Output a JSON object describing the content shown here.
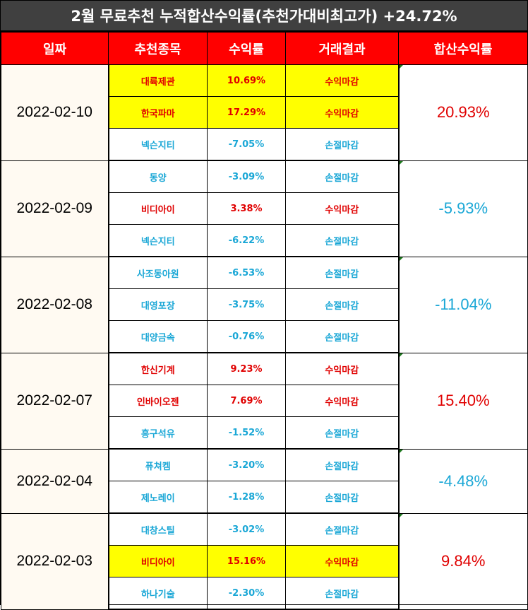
{
  "title": "2월 무료추천 누적합산수익률(추천가대비최고가) +24.72%",
  "headers": {
    "date": "일짜",
    "stock": "추천종목",
    "return": "수익률",
    "result": "거래결과",
    "total": "합산수익률"
  },
  "colors": {
    "title_bg": "#404040",
    "header_bg": "#ff0000",
    "positive": "#e00000",
    "negative": "#1aa7d6",
    "highlight": "#ffff00"
  },
  "groups": [
    {
      "date": "2022-02-10",
      "total": "20.93%",
      "rows": [
        {
          "stock": "대륙제관",
          "return": "10.69%",
          "result": "수익마감"
        },
        {
          "stock": "한국파마",
          "return": "17.29%",
          "result": "수익마감"
        },
        {
          "stock": "넥슨지티",
          "return": "-7.05%",
          "result": "손절마감"
        }
      ]
    },
    {
      "date": "2022-02-09",
      "total": "-5.93%",
      "rows": [
        {
          "stock": "동양",
          "return": "-3.09%",
          "result": "손절마감"
        },
        {
          "stock": "비디아이",
          "return": "3.38%",
          "result": "수익마감"
        },
        {
          "stock": "넥슨지티",
          "return": "-6.22%",
          "result": "손절마감"
        }
      ]
    },
    {
      "date": "2022-02-08",
      "total": "-11.04%",
      "rows": [
        {
          "stock": "사조동아원",
          "return": "-6.53%",
          "result": "손절마감"
        },
        {
          "stock": "대영포장",
          "return": "-3.75%",
          "result": "손절마감"
        },
        {
          "stock": "대양금속",
          "return": "-0.76%",
          "result": "손절마감"
        }
      ]
    },
    {
      "date": "2022-02-07",
      "total": "15.40%",
      "rows": [
        {
          "stock": "한신기계",
          "return": "9.23%",
          "result": "수익마감"
        },
        {
          "stock": "인바이오젠",
          "return": "7.69%",
          "result": "수익마감"
        },
        {
          "stock": "흥구석유",
          "return": "-1.52%",
          "result": "손절마감"
        }
      ]
    },
    {
      "date": "2022-02-04",
      "total": "-4.48%",
      "rows": [
        {
          "stock": "퓨쳐켐",
          "return": "-3.20%",
          "result": "손절마감"
        },
        {
          "stock": "제노레이",
          "return": "-1.28%",
          "result": "손절마감"
        }
      ]
    },
    {
      "date": "2022-02-03",
      "total": "9.84%",
      "rows": [
        {
          "stock": "대창스틸",
          "return": "-3.02%",
          "result": "손절마감"
        },
        {
          "stock": "비디아이",
          "return": "15.16%",
          "result": "수익마감"
        },
        {
          "stock": "하나기술",
          "return": "-2.30%",
          "result": "손절마감"
        }
      ]
    }
  ]
}
